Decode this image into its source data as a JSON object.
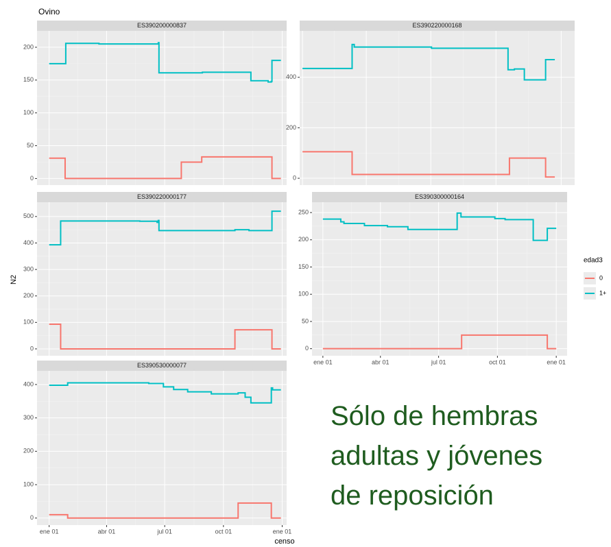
{
  "title": "Ovino",
  "xlabel": "censo",
  "ylabel": "N2",
  "legend_title": "edad3",
  "annotation": [
    "Sólo de hembras",
    "adultas y jóvenes",
    "de reposición"
  ],
  "chart_data": [
    {
      "type": "step",
      "title": "ES390200000837",
      "xlim": [
        -19,
        372
      ],
      "ylim": [
        -10,
        225
      ],
      "xticks": [
        0,
        90,
        181,
        273,
        365
      ],
      "yticks": [
        0,
        50,
        100,
        150,
        200
      ],
      "grid": true,
      "series": [
        {
          "name": "0",
          "color": "#f8766d",
          "x": [
            0,
            25,
            207,
            239,
            349,
            363
          ],
          "values": [
            31,
            0,
            25,
            33,
            0,
            0
          ]
        },
        {
          "name": "1+",
          "color": "#00bfc4",
          "x": [
            0,
            26,
            78,
            171,
            172,
            240,
            316,
            343,
            348,
            349,
            363
          ],
          "values": [
            175,
            206,
            205,
            207,
            161,
            162,
            149,
            147,
            148,
            180,
            180
          ]
        }
      ]
    },
    {
      "type": "step",
      "title": "ES390220000168",
      "xlim": [
        -4,
        384
      ],
      "ylim": [
        -27,
        584
      ],
      "xticks": [
        0,
        90,
        181,
        273,
        365
      ],
      "yticks": [
        0,
        200,
        400
      ],
      "grid": true,
      "series": [
        {
          "name": "0",
          "color": "#f8766d",
          "x": [
            0,
            70,
            292,
            343,
            356
          ],
          "values": [
            105,
            15,
            80,
            5,
            5
          ]
        },
        {
          "name": "1+",
          "color": "#00bfc4",
          "x": [
            0,
            70,
            73,
            182,
            290,
            299,
            313,
            343,
            356
          ],
          "values": [
            435,
            530,
            520,
            515,
            430,
            433,
            390,
            470,
            470
          ]
        }
      ]
    },
    {
      "type": "step",
      "title": "ES390220000177",
      "xlim": [
        -19,
        372
      ],
      "ylim": [
        -26,
        554
      ],
      "xticks": [
        0,
        90,
        181,
        273,
        365
      ],
      "yticks": [
        0,
        100,
        200,
        300,
        400,
        500
      ],
      "grid": true,
      "series": [
        {
          "name": "0",
          "color": "#f8766d",
          "x": [
            0,
            18,
            291,
            349,
            363
          ],
          "values": [
            93,
            0,
            72,
            0,
            0
          ]
        },
        {
          "name": "1+",
          "color": "#00bfc4",
          "x": [
            0,
            18,
            142,
            169,
            171,
            172,
            291,
            313,
            349,
            363
          ],
          "values": [
            393,
            483,
            482,
            478,
            485,
            447,
            450,
            447,
            520,
            520
          ]
        }
      ]
    },
    {
      "type": "step",
      "title": "ES390300000164",
      "xlim": [
        -17,
        382
      ],
      "ylim": [
        -13,
        269
      ],
      "xticks": [
        {
          "value": 0,
          "label": "ene 01"
        },
        {
          "value": 90,
          "label": "abr 01"
        },
        {
          "value": 181,
          "label": "jul 01"
        },
        {
          "value": 273,
          "label": "oct 01"
        },
        {
          "value": 365,
          "label": "ene 01"
        }
      ],
      "yticks": [
        0,
        50,
        100,
        150,
        200,
        250
      ],
      "grid": true,
      "series": [
        {
          "name": "0",
          "color": "#f8766d",
          "x": [
            0,
            217,
            351,
            365
          ],
          "values": [
            0,
            25,
            0,
            0
          ]
        },
        {
          "name": "1+",
          "color": "#00bfc4",
          "x": [
            0,
            28,
            33,
            65,
            101,
            133,
            210,
            216,
            269,
            285,
            329,
            351,
            365
          ],
          "values": [
            238,
            233,
            230,
            226,
            224,
            219,
            249,
            242,
            239,
            237,
            199,
            221,
            221
          ]
        }
      ]
    },
    {
      "type": "step",
      "title": "ES390530000077",
      "xlim": [
        -19,
        372
      ],
      "ylim": [
        -21,
        441
      ],
      "xticks": [
        {
          "value": 0,
          "label": "ene 01"
        },
        {
          "value": 90,
          "label": "abr 01"
        },
        {
          "value": 181,
          "label": "jul 01"
        },
        {
          "value": 273,
          "label": "oct 01"
        },
        {
          "value": 365,
          "label": "ene 01"
        }
      ],
      "yticks": [
        0,
        100,
        200,
        300,
        400
      ],
      "grid": true,
      "series": [
        {
          "name": "0",
          "color": "#f8766d",
          "x": [
            0,
            29,
            296,
            348,
            363
          ],
          "values": [
            10,
            0,
            45,
            0,
            0
          ]
        },
        {
          "name": "1+",
          "color": "#00bfc4",
          "x": [
            0,
            29,
            156,
            179,
            195,
            217,
            254,
            296,
            307,
            316,
            348,
            350,
            363
          ],
          "values": [
            398,
            405,
            403,
            393,
            385,
            378,
            372,
            375,
            362,
            345,
            390,
            384,
            384
          ]
        }
      ]
    }
  ]
}
